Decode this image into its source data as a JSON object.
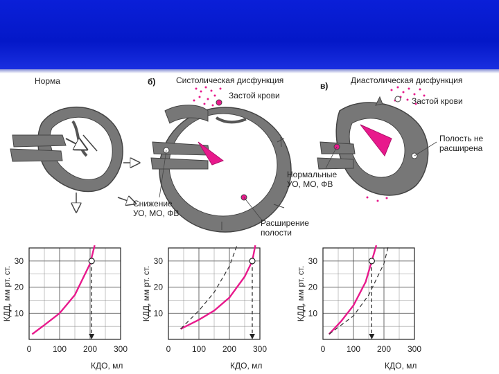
{
  "panels": [
    {
      "letter": "",
      "title": "Норма"
    },
    {
      "letter": "б)",
      "title": "Систолическая дисфункция",
      "congestion": "Застой крови",
      "note1": "Снижение",
      "note2": "УО, МО, ФВ",
      "note3": "Расширение",
      "note4": "полости"
    },
    {
      "letter": "в)",
      "title": "Диастолическая дисфункция",
      "congestion": "Застой крови",
      "note1": "Полость не",
      "note2": "расширена",
      "note3": "Нормальные",
      "note4": "УО, МО, ФВ"
    }
  ],
  "charts": {
    "x_ticks": [
      "0",
      "100",
      "200",
      "300"
    ],
    "y_ticks": [
      "10",
      "20",
      "30"
    ],
    "xlabel": "КДО, мл",
    "ylabel": "КДД, мм рт. ст."
  },
  "chart_data": [
    {
      "type": "line",
      "xlim": [
        0,
        300
      ],
      "ylim": [
        0,
        35
      ],
      "series": [
        {
          "style": "solid",
          "color": "#e8198c",
          "x": [
            10,
            50,
            100,
            150,
            200,
            215
          ],
          "y": [
            2,
            5.5,
            10,
            17,
            29,
            36
          ]
        }
      ],
      "marker": {
        "x": 205,
        "y": 30
      }
    },
    {
      "type": "line",
      "xlim": [
        0,
        300
      ],
      "ylim": [
        0,
        35
      ],
      "series": [
        {
          "style": "solid",
          "color": "#e8198c",
          "x": [
            40,
            100,
            150,
            200,
            250,
            275,
            285
          ],
          "y": [
            4,
            7.5,
            11,
            16,
            24,
            30,
            36
          ]
        },
        {
          "style": "dashed",
          "color": "#333333",
          "x": [
            40,
            100,
            150,
            200,
            225
          ],
          "y": [
            4,
            11,
            18,
            28,
            36
          ]
        }
      ],
      "marker": {
        "x": 275,
        "y": 30
      }
    },
    {
      "type": "line",
      "xlim": [
        0,
        300
      ],
      "ylim": [
        0,
        35
      ],
      "series": [
        {
          "style": "solid",
          "color": "#e8198c",
          "x": [
            20,
            60,
            100,
            140,
            160,
            175
          ],
          "y": [
            2,
            7,
            13,
            22,
            30,
            36
          ]
        },
        {
          "style": "dashed",
          "color": "#333333",
          "x": [
            20,
            100,
            150,
            200,
            215
          ],
          "y": [
            2,
            9,
            17,
            29,
            36
          ]
        }
      ],
      "marker": {
        "x": 160,
        "y": 30
      }
    }
  ]
}
